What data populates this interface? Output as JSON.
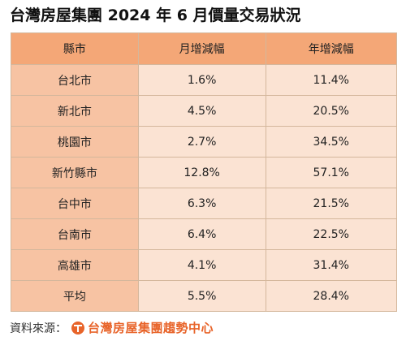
{
  "title": "台灣房屋集團 2024 年 6 月價量交易狀況",
  "table": {
    "headers": [
      "縣市",
      "月增減幅",
      "年增減幅"
    ],
    "rows": [
      {
        "city": "台北市",
        "monthly": "1.6%",
        "yearly": "11.4%"
      },
      {
        "city": "新北市",
        "monthly": "4.5%",
        "yearly": "20.5%"
      },
      {
        "city": "桃園市",
        "monthly": "2.7%",
        "yearly": "34.5%"
      },
      {
        "city": "新竹縣市",
        "monthly": "12.8%",
        "yearly": "57.1%"
      },
      {
        "city": "台中市",
        "monthly": "6.3%",
        "yearly": "21.5%"
      },
      {
        "city": "台南市",
        "monthly": "6.4%",
        "yearly": "22.5%"
      },
      {
        "city": "高雄市",
        "monthly": "4.1%",
        "yearly": "31.4%"
      },
      {
        "city": "平均",
        "monthly": "5.5%",
        "yearly": "28.4%"
      }
    ]
  },
  "source": {
    "label": "資料來源：",
    "logo_text": "台灣房屋集團趨勢中心",
    "logo_color": "#e8642a"
  },
  "colors": {
    "header_bg": "#f4a777",
    "city_bg": "#f7c3a3",
    "value_bg": "#fbe3d3"
  }
}
